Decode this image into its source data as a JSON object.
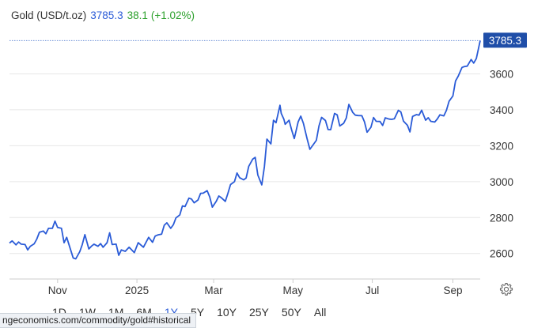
{
  "header": {
    "name": "Gold (USD/t.oz)",
    "price": "3785.3",
    "change": "38.1",
    "change_pct": "(+1.02%)"
  },
  "last_price_label": "3785.3",
  "range_buttons": [
    "1D",
    "1W",
    "1M",
    "6M",
    "1Y",
    "5Y",
    "10Y",
    "25Y",
    "50Y",
    "All"
  ],
  "active_range": "1Y",
  "status_url": "ngeconomics.com/commodity/gold#historical",
  "colors": {
    "line": "#2a5bd7",
    "positive": "#2ca02c",
    "grid": "#e6e6e6"
  },
  "icons": {
    "settings": "gear-icon"
  },
  "chart_data": {
    "type": "line",
    "title": "",
    "xlabel": "",
    "ylabel": "",
    "y_ticks": [
      2600,
      2800,
      3000,
      3200,
      3400,
      3600
    ],
    "ylim": [
      2458,
      3822
    ],
    "x_ticks": [
      "Nov",
      "2025",
      "Mar",
      "May",
      "Jul",
      "Sep"
    ],
    "x_range": [
      "2024-09-25",
      "2025-09-22"
    ],
    "x_tick_dates": [
      "2024-11-01",
      "2025-01-01",
      "2025-03-01",
      "2025-05-01",
      "2025-07-01",
      "2025-09-01"
    ],
    "last_value_line": 3785.3,
    "grid": "horizontal",
    "series": [
      {
        "name": "",
        "points": [
          [
            "2024-09-25",
            2658
          ],
          [
            "2024-09-27",
            2670
          ],
          [
            "2024-09-30",
            2648
          ],
          [
            "2024-10-02",
            2664
          ],
          [
            "2024-10-04",
            2652
          ],
          [
            "2024-10-07",
            2650
          ],
          [
            "2024-10-09",
            2620
          ],
          [
            "2024-10-11",
            2640
          ],
          [
            "2024-10-14",
            2654
          ],
          [
            "2024-10-16",
            2680
          ],
          [
            "2024-10-18",
            2718
          ],
          [
            "2024-10-21",
            2725
          ],
          [
            "2024-10-23",
            2710
          ],
          [
            "2024-10-25",
            2740
          ],
          [
            "2024-10-28",
            2740
          ],
          [
            "2024-10-30",
            2780
          ],
          [
            "2024-11-01",
            2745
          ],
          [
            "2024-11-04",
            2740
          ],
          [
            "2024-11-06",
            2660
          ],
          [
            "2024-11-08",
            2690
          ],
          [
            "2024-11-11",
            2620
          ],
          [
            "2024-11-13",
            2575
          ],
          [
            "2024-11-15",
            2570
          ],
          [
            "2024-11-18",
            2610
          ],
          [
            "2024-11-20",
            2650
          ],
          [
            "2024-11-22",
            2705
          ],
          [
            "2024-11-25",
            2625
          ],
          [
            "2024-11-27",
            2640
          ],
          [
            "2024-11-29",
            2652
          ],
          [
            "2024-12-02",
            2640
          ],
          [
            "2024-12-04",
            2655
          ],
          [
            "2024-12-06",
            2635
          ],
          [
            "2024-12-09",
            2660
          ],
          [
            "2024-12-11",
            2715
          ],
          [
            "2024-12-13",
            2650
          ],
          [
            "2024-12-16",
            2652
          ],
          [
            "2024-12-18",
            2590
          ],
          [
            "2024-12-20",
            2620
          ],
          [
            "2024-12-23",
            2612
          ],
          [
            "2024-12-26",
            2635
          ],
          [
            "2024-12-30",
            2605
          ],
          [
            "2025-01-02",
            2660
          ],
          [
            "2025-01-06",
            2635
          ],
          [
            "2025-01-08",
            2662
          ],
          [
            "2025-01-10",
            2690
          ],
          [
            "2025-01-13",
            2662
          ],
          [
            "2025-01-15",
            2697
          ],
          [
            "2025-01-17",
            2703
          ],
          [
            "2025-01-20",
            2708
          ],
          [
            "2025-01-22",
            2757
          ],
          [
            "2025-01-24",
            2771
          ],
          [
            "2025-01-27",
            2740
          ],
          [
            "2025-01-29",
            2760
          ],
          [
            "2025-01-31",
            2798
          ],
          [
            "2025-02-03",
            2815
          ],
          [
            "2025-02-05",
            2865
          ],
          [
            "2025-02-07",
            2861
          ],
          [
            "2025-02-10",
            2908
          ],
          [
            "2025-02-12",
            2903
          ],
          [
            "2025-02-14",
            2882
          ],
          [
            "2025-02-17",
            2898
          ],
          [
            "2025-02-19",
            2935
          ],
          [
            "2025-02-21",
            2936
          ],
          [
            "2025-02-24",
            2950
          ],
          [
            "2025-02-26",
            2915
          ],
          [
            "2025-02-28",
            2858
          ],
          [
            "2025-03-03",
            2890
          ],
          [
            "2025-03-05",
            2920
          ],
          [
            "2025-03-07",
            2910
          ],
          [
            "2025-03-10",
            2890
          ],
          [
            "2025-03-12",
            2935
          ],
          [
            "2025-03-14",
            2984
          ],
          [
            "2025-03-17",
            3000
          ],
          [
            "2025-03-19",
            3048
          ],
          [
            "2025-03-21",
            3022
          ],
          [
            "2025-03-24",
            3010
          ],
          [
            "2025-03-26",
            3020
          ],
          [
            "2025-03-28",
            3085
          ],
          [
            "2025-03-31",
            3125
          ],
          [
            "2025-04-02",
            3135
          ],
          [
            "2025-04-04",
            3037
          ],
          [
            "2025-04-07",
            2982
          ],
          [
            "2025-04-09",
            3083
          ],
          [
            "2025-04-11",
            3237
          ],
          [
            "2025-04-14",
            3210
          ],
          [
            "2025-04-16",
            3342
          ],
          [
            "2025-04-18",
            3328
          ],
          [
            "2025-04-21",
            3425
          ],
          [
            "2025-04-22",
            3380
          ],
          [
            "2025-04-24",
            3348
          ],
          [
            "2025-04-25",
            3319
          ],
          [
            "2025-04-28",
            3342
          ],
          [
            "2025-04-30",
            3287
          ],
          [
            "2025-05-02",
            3240
          ],
          [
            "2025-05-05",
            3333
          ],
          [
            "2025-05-07",
            3365
          ],
          [
            "2025-05-09",
            3325
          ],
          [
            "2025-05-12",
            3235
          ],
          [
            "2025-05-14",
            3180
          ],
          [
            "2025-05-16",
            3200
          ],
          [
            "2025-05-19",
            3230
          ],
          [
            "2025-05-21",
            3310
          ],
          [
            "2025-05-23",
            3358
          ],
          [
            "2025-05-26",
            3340
          ],
          [
            "2025-05-28",
            3290
          ],
          [
            "2025-05-30",
            3289
          ],
          [
            "2025-06-02",
            3380
          ],
          [
            "2025-06-04",
            3372
          ],
          [
            "2025-06-06",
            3310
          ],
          [
            "2025-06-09",
            3325
          ],
          [
            "2025-06-11",
            3354
          ],
          [
            "2025-06-13",
            3430
          ],
          [
            "2025-06-16",
            3385
          ],
          [
            "2025-06-18",
            3370
          ],
          [
            "2025-06-20",
            3368
          ],
          [
            "2025-06-23",
            3367
          ],
          [
            "2025-06-25",
            3333
          ],
          [
            "2025-06-27",
            3275
          ],
          [
            "2025-06-30",
            3303
          ],
          [
            "2025-07-02",
            3357
          ],
          [
            "2025-07-04",
            3336
          ],
          [
            "2025-07-07",
            3335
          ],
          [
            "2025-07-09",
            3313
          ],
          [
            "2025-07-11",
            3355
          ],
          [
            "2025-07-14",
            3348
          ],
          [
            "2025-07-16",
            3347
          ],
          [
            "2025-07-18",
            3350
          ],
          [
            "2025-07-21",
            3397
          ],
          [
            "2025-07-23",
            3388
          ],
          [
            "2025-07-25",
            3337
          ],
          [
            "2025-07-28",
            3314
          ],
          [
            "2025-07-30",
            3277
          ],
          [
            "2025-08-01",
            3363
          ],
          [
            "2025-08-04",
            3373
          ],
          [
            "2025-08-06",
            3370
          ],
          [
            "2025-08-08",
            3398
          ],
          [
            "2025-08-11",
            3342
          ],
          [
            "2025-08-13",
            3356
          ],
          [
            "2025-08-15",
            3336
          ],
          [
            "2025-08-18",
            3332
          ],
          [
            "2025-08-20",
            3349
          ],
          [
            "2025-08-22",
            3372
          ],
          [
            "2025-08-25",
            3366
          ],
          [
            "2025-08-27",
            3397
          ],
          [
            "2025-08-29",
            3447
          ],
          [
            "2025-09-01",
            3477
          ],
          [
            "2025-09-03",
            3560
          ],
          [
            "2025-09-05",
            3586
          ],
          [
            "2025-09-08",
            3636
          ],
          [
            "2025-09-10",
            3641
          ],
          [
            "2025-09-12",
            3643
          ],
          [
            "2025-09-15",
            3680
          ],
          [
            "2025-09-17",
            3660
          ],
          [
            "2025-09-19",
            3685
          ],
          [
            "2025-09-22",
            3785.3
          ]
        ]
      }
    ]
  }
}
